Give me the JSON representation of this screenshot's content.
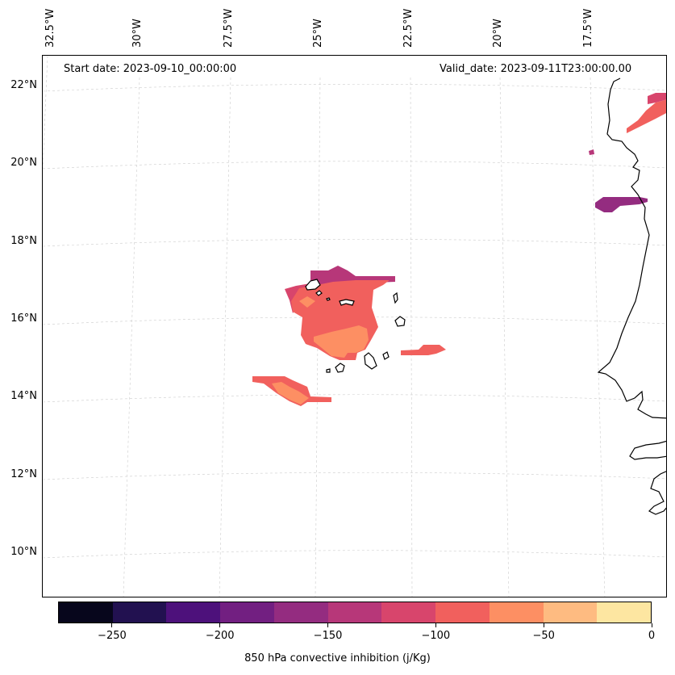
{
  "annotations": {
    "start_date": "Start date: 2023-09-10_00:00:00",
    "valid_date": "Valid_date: 2023-09-11T23:00:00.00"
  },
  "longitude_labels": [
    "32.5°W",
    "30°W",
    "27.5°W",
    "25°W",
    "22.5°W",
    "20°W",
    "17.5°W"
  ],
  "latitude_labels": [
    "22°N",
    "20°N",
    "18°N",
    "16°N",
    "14°N",
    "12°N",
    "10°N"
  ],
  "colorbar": {
    "label": "850 hPa convective inhibition (j/Kg)",
    "levels": [
      -275,
      -250,
      -225,
      -200,
      -175,
      -150,
      -125,
      -100,
      -75,
      -50,
      -25,
      0
    ],
    "colors": [
      "#07061c",
      "#221150",
      "#4d117b",
      "#721f81",
      "#942c80",
      "#b73779",
      "#d8456c",
      "#f1605d",
      "#fd8f63",
      "#febb81",
      "#fde6a1"
    ],
    "tick_labels": [
      "−250",
      "−200",
      "−150",
      "−100",
      "−50",
      "0"
    ]
  },
  "chart_data": {
    "type": "filled-contour map",
    "variable": "850 hPa convective inhibition",
    "units": "j/Kg",
    "region": "Cabo Verde and West African coast",
    "lon_range": [
      -33,
      -16.5
    ],
    "lat_range": [
      9,
      22.5
    ],
    "colorbar_range": [
      -275,
      0
    ],
    "features": [
      {
        "name": "Cabo Verde main cell",
        "value_range": [
          -125,
          -75
        ],
        "innermost_value_range": [
          -75,
          -50
        ]
      },
      {
        "name": "SW band near 14.2N",
        "value_range": [
          -100,
          -50
        ]
      },
      {
        "name": "Band east of Cabo Verde",
        "value_range": [
          -100,
          -75
        ]
      },
      {
        "name": "Coastal cell near 19N",
        "value_range": [
          -175,
          -150
        ]
      },
      {
        "name": "Coastal strip near 21.5N",
        "value_range": [
          -125,
          -100
        ]
      }
    ]
  }
}
